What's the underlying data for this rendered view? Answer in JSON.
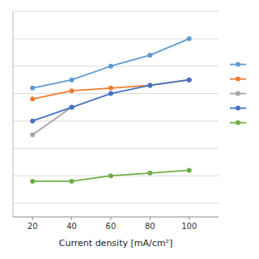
{
  "chart_data": {
    "type": "line",
    "x": [
      20,
      40,
      60,
      80,
      100
    ],
    "series": [
      {
        "color": "#5b9bd5",
        "values": [
          72,
          75,
          80,
          84,
          90
        ]
      },
      {
        "color": "#ed7d31",
        "values": [
          68,
          71,
          72,
          73,
          75
        ]
      },
      {
        "color": "#a5a5a5",
        "values": [
          55,
          65,
          null,
          null,
          null
        ]
      },
      {
        "color": "#4472c4",
        "values": [
          60,
          65,
          70,
          73,
          75
        ]
      },
      {
        "color": "#70ad47",
        "values": [
          38,
          38,
          40,
          41,
          42
        ]
      }
    ],
    "xlabel": "Current density [mA/cm²]",
    "xlim": [
      10,
      115
    ],
    "xticks": [
      20,
      40,
      60,
      80,
      100
    ],
    "ylim": [
      25,
      100
    ],
    "yticks": [
      30,
      40,
      50,
      60,
      70,
      80,
      90,
      100
    ],
    "grid": true,
    "tick_labels": "x",
    "marker": "circle",
    "legend": "right"
  }
}
